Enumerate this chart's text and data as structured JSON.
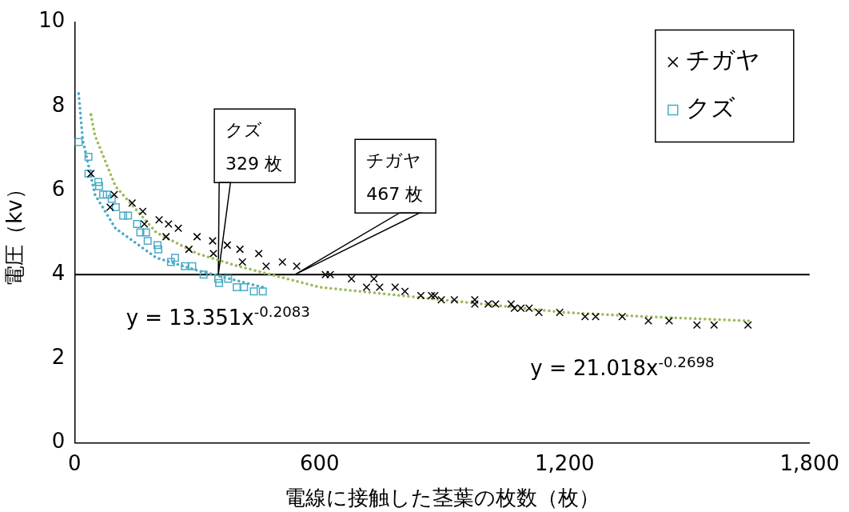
{
  "chart_data": {
    "type": "scatter",
    "xlabel": "電線に接触した茎葉の枚数（枚）",
    "ylabel": "電圧（kv）",
    "xlim": [
      0,
      1800
    ],
    "xticks": [
      0,
      600,
      {
        "value": 1200,
        "label": "1,200"
      },
      {
        "value": 1800,
        "label": "1,800"
      }
    ],
    "ylim": [
      0,
      10
    ],
    "yticks": [
      0,
      2,
      4,
      6,
      8,
      10
    ],
    "grid": false,
    "legend": "top right",
    "series": [
      {
        "name": "チガヤ",
        "color": "#000000",
        "marker": "cross",
        "x": [
          40,
          87,
          97,
          141,
          167,
          171,
          207,
          224,
          230,
          254,
          280,
          300,
          338,
          340,
          374,
          405,
          411,
          451,
          469,
          509,
          544,
          614,
          626,
          678,
          715,
          733,
          747,
          785,
          809,
          848,
          874,
          882,
          898,
          930,
          980,
          980,
          1013,
          1031,
          1069,
          1077,
          1093,
          1113,
          1137,
          1188,
          1250,
          1276,
          1341,
          1405,
          1456,
          1524,
          1566,
          1649
        ],
        "values": [
          6.4,
          5.6,
          5.9,
          5.7,
          5.5,
          5.2,
          5.3,
          4.9,
          5.2,
          5.1,
          4.6,
          4.9,
          4.8,
          4.5,
          4.7,
          4.6,
          4.3,
          4.5,
          4.2,
          4.3,
          4.2,
          4.0,
          4.0,
          3.9,
          3.7,
          3.9,
          3.7,
          3.7,
          3.6,
          3.5,
          3.5,
          3.5,
          3.4,
          3.4,
          3.4,
          3.3,
          3.3,
          3.3,
          3.3,
          3.2,
          3.2,
          3.2,
          3.1,
          3.1,
          3.0,
          3.0,
          3.0,
          2.9,
          2.9,
          2.8,
          2.8,
          2.8
        ]
      },
      {
        "name": "クズ",
        "color": "#4bacc6",
        "marker": "square",
        "x": [
          10,
          34,
          34,
          58,
          60,
          70,
          79,
          91,
          101,
          119,
          131,
          153,
          161,
          175,
          179,
          203,
          205,
          236,
          246,
          270,
          288,
          316,
          352,
          354,
          376,
          397,
          415,
          439,
          461
        ],
        "values": [
          7.15,
          6.8,
          6.4,
          6.2,
          6.1,
          5.9,
          5.9,
          5.8,
          5.6,
          5.4,
          5.4,
          5.2,
          5.0,
          5.0,
          4.8,
          4.7,
          4.6,
          4.3,
          4.4,
          4.2,
          4.2,
          4.0,
          3.9,
          3.8,
          3.9,
          3.7,
          3.7,
          3.6,
          3.6
        ]
      },
      {
        "type": "line",
        "color": "#9bbb59",
        "marker": "none",
        "line_style": "dotted",
        "x": [
          40,
          50,
          100,
          200,
          300,
          400,
          600,
          800,
          1000,
          1200,
          1400,
          1650
        ],
        "values": [
          7.8,
          7.3,
          6.1,
          5.0,
          4.5,
          4.2,
          3.7,
          3.5,
          3.3,
          3.1,
          3.0,
          2.9
        ]
      },
      {
        "type": "line",
        "color": "#4bacc6",
        "marker": "none",
        "line_style": "dotted",
        "x": [
          10,
          20,
          50,
          100,
          200,
          300,
          460
        ],
        "values": [
          8.3,
          7.2,
          5.9,
          5.1,
          4.4,
          4.1,
          3.7
        ]
      }
    ],
    "ref_lines": [
      {
        "axis": "y",
        "value": 4,
        "color": "#000000"
      }
    ],
    "annotations": [
      {
        "text": "クズ\n329 枚",
        "x": 352,
        "y": 4
      },
      {
        "text": "チガヤ\n467 枚",
        "x": 540,
        "y": 4
      },
      "y = 13.351x$^{-0.2083}$",
      "y = 21.018x$^{-0.2698}$"
    ]
  }
}
